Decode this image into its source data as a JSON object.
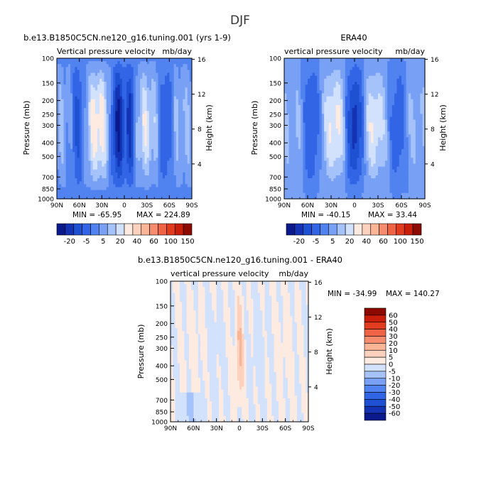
{
  "suptitle": "DJF",
  "chart_data": [
    {
      "type": "heatmap",
      "id": "model",
      "title": "b.e13.B1850C5CN.ne120_g16.tuning.001 (yrs 1-9)",
      "subtitle_left": "Vertical pressure velocity",
      "subtitle_right": "mb/day",
      "xlabel": "",
      "ylabel": "Pressure (mb)",
      "ylabel_right": "Height (km)",
      "x_ticks": [
        "90N",
        "60N",
        "30N",
        "0",
        "30S",
        "60S",
        "90S"
      ],
      "y_ticks": [
        "100",
        "150",
        "200",
        "250",
        "300",
        "400",
        "500",
        "700",
        "850",
        "1000"
      ],
      "y_ticks_right": [
        "16",
        "12",
        "8",
        "4"
      ],
      "min_label": "MIN = -65.95",
      "max_label": "MAX = 224.89"
    },
    {
      "type": "heatmap",
      "id": "obs",
      "title": "ERA40",
      "subtitle_left": "vertical pressure velocity",
      "subtitle_right": "mb/day",
      "xlabel": "",
      "ylabel": "Pressure (mb)",
      "ylabel_right": "Height (km)",
      "x_ticks": [
        "90N",
        "60N",
        "30N",
        "0",
        "30S",
        "60S",
        "90S"
      ],
      "y_ticks": [
        "100",
        "150",
        "200",
        "250",
        "300",
        "400",
        "500",
        "700",
        "850",
        "1000"
      ],
      "y_ticks_right": [
        "16",
        "12",
        "8",
        "4"
      ],
      "min_label": "MIN = -40.15",
      "max_label": "MAX = 33.44"
    },
    {
      "type": "heatmap",
      "id": "diff",
      "title": "b.e13.B1850C5CN.ne120_g16.tuning.001 - ERA40",
      "subtitle_left": "vertical pressure velocity",
      "subtitle_right": "mb/day",
      "xlabel": "",
      "ylabel": "Pressure (mb)",
      "ylabel_right": "Height (km)",
      "x_ticks": [
        "90N",
        "60N",
        "30N",
        "0",
        "30S",
        "60S",
        "90S"
      ],
      "y_ticks": [
        "100",
        "150",
        "200",
        "250",
        "300",
        "400",
        "500",
        "700",
        "850",
        "1000"
      ],
      "y_ticks_right": [
        "16",
        "12",
        "8",
        "4"
      ],
      "min_label": "MIN = -34.99",
      "max_label": "MAX = 140.27"
    }
  ],
  "colorbar_top": {
    "orientation": "horizontal",
    "labels": [
      "-20",
      "-5",
      "5",
      "20",
      "40",
      "60",
      "100",
      "150"
    ],
    "colors": [
      "#0a1a8c",
      "#1432b4",
      "#1e50d2",
      "#3264e6",
      "#5082f0",
      "#78a0f5",
      "#a5c3fa",
      "#d2e1fc",
      "#fdebe1",
      "#fcd2be",
      "#fab496",
      "#f58c6e",
      "#f06446",
      "#e13c1e",
      "#c81e0a",
      "#8c0a00"
    ]
  },
  "colorbar_diff": {
    "orientation": "vertical",
    "labels": [
      "60",
      "50",
      "40",
      "30",
      "20",
      "10",
      "5",
      "0",
      "-5",
      "-10",
      "-20",
      "-30",
      "-40",
      "-50",
      "-60"
    ],
    "colors": [
      "#8c0a00",
      "#c81e0a",
      "#e13c1e",
      "#f06446",
      "#f58c6e",
      "#fab496",
      "#fcd2be",
      "#fdebe1",
      "#d2e1fc",
      "#a5c3fa",
      "#78a0f5",
      "#5082f0",
      "#3264e6",
      "#1e50d2",
      "#1432b4",
      "#0a1a8c"
    ]
  }
}
